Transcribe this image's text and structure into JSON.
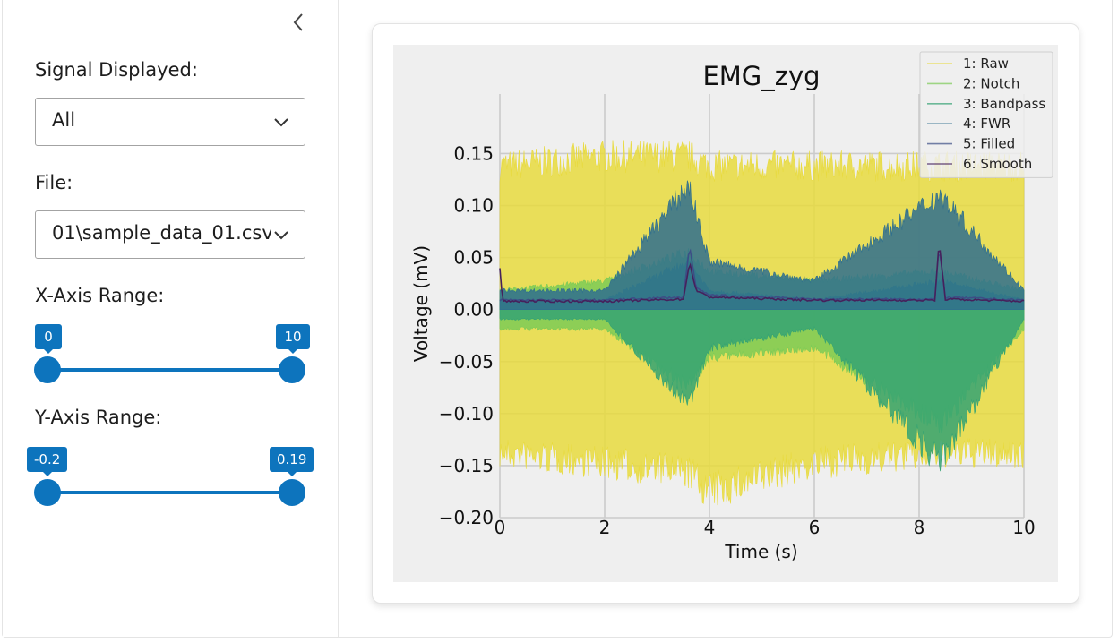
{
  "sidebar": {
    "collapse_icon": "chevron-left-icon",
    "signal_label": "Signal Displayed:",
    "signal_value": "All",
    "file_label": "File:",
    "file_value": "01\\sample_data_01.csv",
    "x_range_label": "X-Axis Range:",
    "x_range_min": "0",
    "x_range_max": "10",
    "y_range_label": "Y-Axis Range:",
    "y_range_min": "-0.2",
    "y_range_max": "0.19",
    "accent": "#0d74bd"
  },
  "chart_data": {
    "type": "line",
    "title": "EMG_zyg",
    "xlabel": "Time (s)",
    "ylabel": "Voltage (mV)",
    "xlim": [
      0,
      10
    ],
    "ylim": [
      -0.2,
      0.19
    ],
    "xticks": [
      "0",
      "2",
      "4",
      "6",
      "8",
      "10"
    ],
    "yticks": [
      "0.15",
      "0.10",
      "0.05",
      "0.00",
      "−0.05",
      "−0.10",
      "−0.15",
      "−0.20"
    ],
    "grid": true,
    "legend_position": "top-right",
    "background": "#efefef",
    "series": [
      {
        "name": "1: Raw",
        "color": "#e8da3e",
        "envelope": {
          "x": [
            0,
            2,
            3.6,
            4,
            6,
            8.4,
            10
          ],
          "upper": [
            0.15,
            0.16,
            0.16,
            0.15,
            0.15,
            0.15,
            0.15
          ],
          "lower": [
            -0.15,
            -0.16,
            -0.17,
            -0.19,
            -0.16,
            -0.15,
            -0.15
          ]
        }
      },
      {
        "name": "2: Notch",
        "color": "#7ccb56",
        "envelope": {
          "x": [
            0,
            2,
            3.6,
            4,
            6,
            8.4,
            10
          ],
          "upper": [
            0.02,
            0.03,
            0.06,
            0.04,
            0.03,
            0.04,
            0.02
          ],
          "lower": [
            -0.02,
            -0.02,
            -0.08,
            -0.05,
            -0.04,
            -0.12,
            -0.02
          ]
        }
      },
      {
        "name": "3: Bandpass",
        "color": "#35a373",
        "envelope": {
          "x": [
            0,
            2,
            3.6,
            4,
            6,
            8.4,
            10
          ],
          "upper": [
            0.01,
            0.01,
            0.05,
            0.02,
            0.01,
            0.03,
            0.01
          ],
          "lower": [
            -0.01,
            -0.01,
            -0.1,
            -0.04,
            -0.02,
            -0.16,
            -0.01
          ]
        }
      },
      {
        "name": "4: FWR",
        "color": "#2f6f8e",
        "envelope": {
          "x": [
            0,
            2,
            3.6,
            4,
            6,
            8.4,
            10
          ],
          "upper": [
            0.02,
            0.02,
            0.13,
            0.05,
            0.03,
            0.12,
            0.02
          ],
          "lower": [
            0.0,
            0.0,
            0.0,
            0.0,
            0.0,
            0.0,
            0.0
          ]
        }
      },
      {
        "name": "5: Filled",
        "color": "#3c4e86",
        "x": [
          0,
          2,
          3.5,
          3.62,
          3.75,
          4,
          6,
          8.3,
          8.38,
          8.5,
          10
        ],
        "y": [
          0.009,
          0.009,
          0.012,
          0.06,
          0.02,
          0.014,
          0.01,
          0.01,
          0.06,
          0.012,
          0.009
        ]
      },
      {
        "name": "6: Smooth",
        "color": "#46215c",
        "x": [
          0,
          0.05,
          2,
          3.5,
          3.62,
          3.75,
          4,
          6,
          8.3,
          8.38,
          8.5,
          10
        ],
        "y": [
          0.04,
          0.008,
          0.008,
          0.01,
          0.045,
          0.018,
          0.012,
          0.009,
          0.009,
          0.065,
          0.01,
          0.008
        ]
      }
    ]
  }
}
